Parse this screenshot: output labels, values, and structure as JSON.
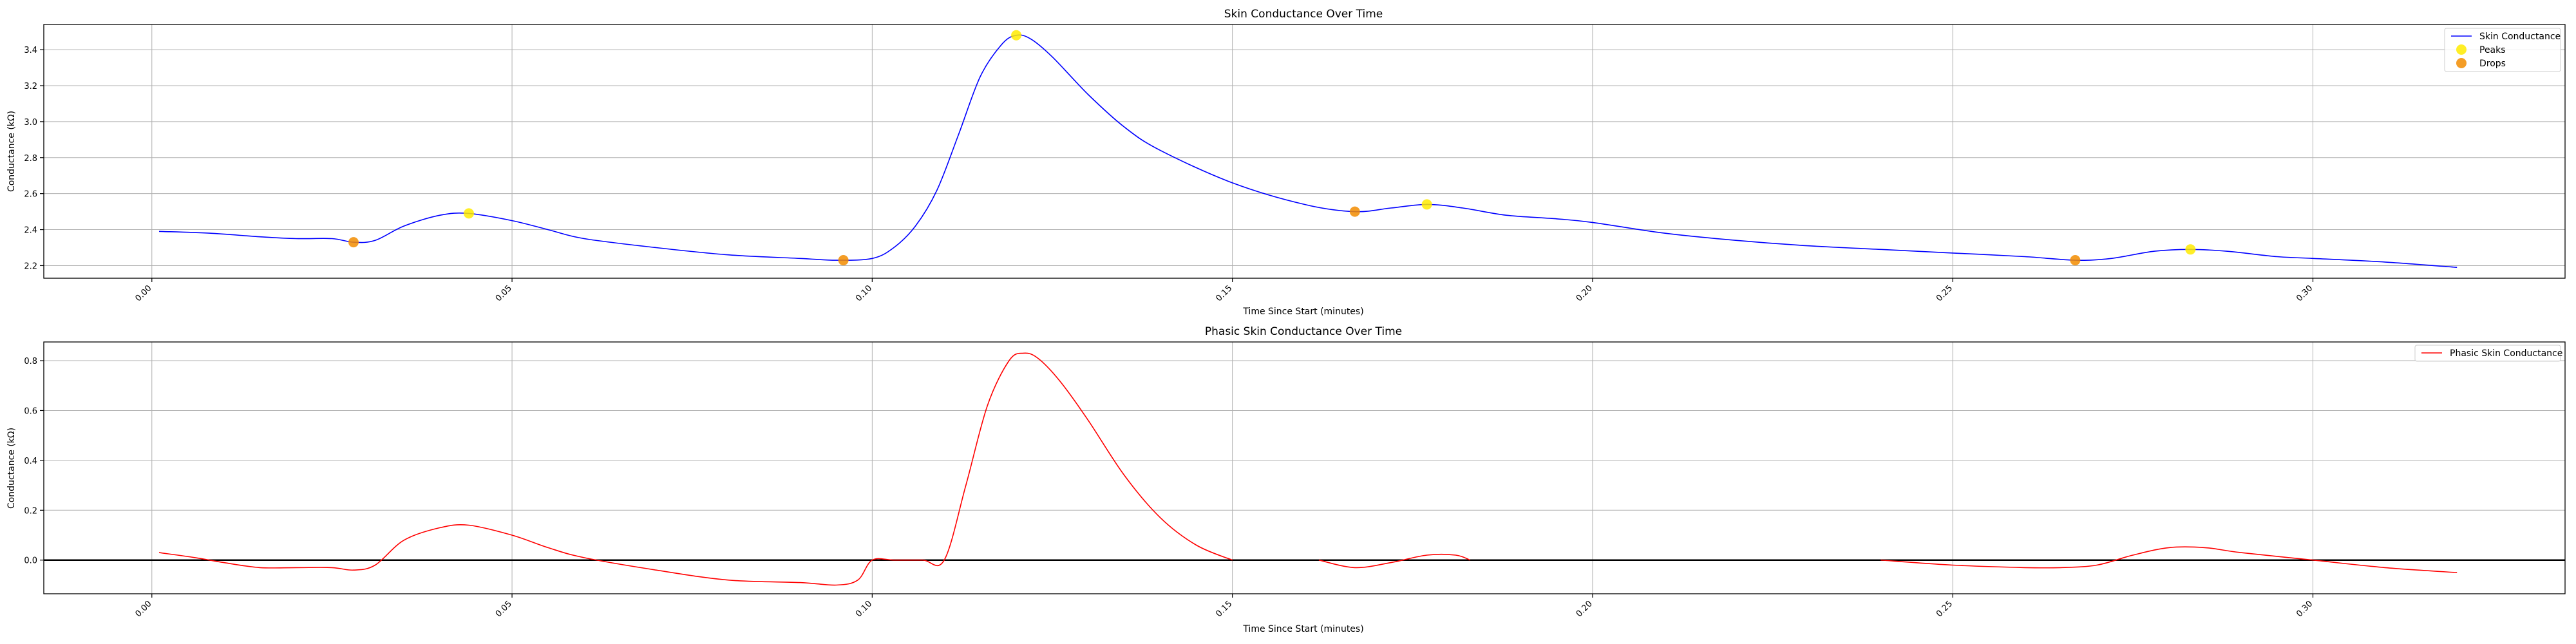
{
  "colors": {
    "sc_line": "#0000ff",
    "phasic_line": "#ff0000",
    "peaks": "#ffeb00",
    "drops": "#f28c00",
    "grid": "#b0b0b0",
    "zero_line": "#000000"
  },
  "chart_data": [
    {
      "type": "line",
      "title": "Skin Conductance Over Time",
      "xlabel": "Time Since Start (minutes)",
      "ylabel": "Conductance (kΩ)",
      "xlim": [
        -0.015,
        0.335
      ],
      "ylim": [
        2.13,
        3.54
      ],
      "xticks": [
        0.0,
        0.05,
        0.1,
        0.15,
        0.2,
        0.25,
        0.3
      ],
      "xtick_labels": [
        "0.00",
        "0.05",
        "0.10",
        "0.15",
        "0.20",
        "0.25",
        "0.30"
      ],
      "yticks": [
        2.2,
        2.4,
        2.6,
        2.8,
        3.0,
        3.2,
        3.4
      ],
      "ytick_labels": [
        "2.2",
        "2.4",
        "2.6",
        "2.8",
        "3.0",
        "3.2",
        "3.4"
      ],
      "grid": true,
      "legend_position": "top-right",
      "series": [
        {
          "name": "Skin Conductance",
          "kind": "line",
          "x": [
            0.001,
            0.008,
            0.015,
            0.02,
            0.025,
            0.028,
            0.031,
            0.035,
            0.04,
            0.044,
            0.05,
            0.055,
            0.06,
            0.07,
            0.08,
            0.09,
            0.095,
            0.1,
            0.103,
            0.106,
            0.109,
            0.112,
            0.115,
            0.118,
            0.12,
            0.122,
            0.125,
            0.13,
            0.135,
            0.14,
            0.15,
            0.16,
            0.167,
            0.172,
            0.177,
            0.182,
            0.188,
            0.195,
            0.2,
            0.21,
            0.22,
            0.23,
            0.24,
            0.25,
            0.26,
            0.267,
            0.272,
            0.278,
            0.283,
            0.288,
            0.295,
            0.3,
            0.31,
            0.32
          ],
          "y": [
            2.39,
            2.38,
            2.36,
            2.35,
            2.35,
            2.33,
            2.34,
            2.42,
            2.48,
            2.49,
            2.45,
            2.4,
            2.35,
            2.3,
            2.26,
            2.24,
            2.23,
            2.24,
            2.3,
            2.42,
            2.62,
            2.93,
            3.25,
            3.43,
            3.48,
            3.46,
            3.36,
            3.15,
            2.97,
            2.84,
            2.66,
            2.54,
            2.5,
            2.52,
            2.54,
            2.52,
            2.48,
            2.46,
            2.44,
            2.38,
            2.34,
            2.31,
            2.29,
            2.27,
            2.25,
            2.23,
            2.24,
            2.28,
            2.29,
            2.28,
            2.25,
            2.24,
            2.22,
            2.19
          ]
        },
        {
          "name": "Peaks",
          "kind": "scatter",
          "x": [
            0.044,
            0.12,
            0.177,
            0.283
          ],
          "y": [
            2.49,
            3.48,
            2.54,
            2.29
          ]
        },
        {
          "name": "Drops",
          "kind": "scatter",
          "x": [
            0.028,
            0.096,
            0.167,
            0.267
          ],
          "y": [
            2.33,
            2.23,
            2.5,
            2.23
          ]
        }
      ]
    },
    {
      "type": "line",
      "title": "Phasic Skin Conductance Over Time",
      "xlabel": "Time Since Start (minutes)",
      "ylabel": "Conductance (kΩ)",
      "xlim": [
        -0.015,
        0.335
      ],
      "ylim": [
        -0.135,
        0.875
      ],
      "xticks": [
        0.0,
        0.05,
        0.1,
        0.15,
        0.2,
        0.25,
        0.3
      ],
      "xtick_labels": [
        "0.00",
        "0.05",
        "0.10",
        "0.15",
        "0.20",
        "0.25",
        "0.30"
      ],
      "yticks": [
        0.0,
        0.2,
        0.4,
        0.6,
        0.8
      ],
      "ytick_labels": [
        "0.0",
        "0.2",
        "0.4",
        "0.6",
        "0.8"
      ],
      "grid": true,
      "zero_line": true,
      "legend_position": "top-right",
      "series": [
        {
          "name": "Phasic Skin Conductance",
          "kind": "line",
          "segments": [
            {
              "x": [
                0.001,
                0.006,
                0.01,
                0.015,
                0.02,
                0.025,
                0.028,
                0.031,
                0.035,
                0.04,
                0.044,
                0.05,
                0.055,
                0.06,
                0.07,
                0.08,
                0.09,
                0.095,
                0.098,
                0.1,
                0.103,
                0.107,
                0.11,
                0.113,
                0.116,
                0.119,
                0.121,
                0.123,
                0.126,
                0.13,
                0.135,
                0.14,
                0.145,
                0.15
              ],
              "y": [
                0.03,
                0.01,
                -0.01,
                -0.03,
                -0.03,
                -0.03,
                -0.04,
                -0.02,
                0.08,
                0.13,
                0.14,
                0.1,
                0.05,
                0.01,
                -0.04,
                -0.08,
                -0.09,
                -0.1,
                -0.08,
                0.0,
                0.0,
                0.0,
                0.0,
                0.3,
                0.62,
                0.8,
                0.83,
                0.81,
                0.72,
                0.56,
                0.34,
                0.17,
                0.06,
                0.0
              ]
            },
            {
              "x": [
                0.162,
                0.167,
                0.172,
                0.177,
                0.181,
                0.183
              ],
              "y": [
                0.0,
                -0.03,
                -0.01,
                0.02,
                0.02,
                0.0
              ]
            },
            {
              "x": [
                0.24,
                0.25,
                0.26,
                0.265,
                0.27,
                0.275,
                0.28,
                0.285,
                0.29,
                0.3,
                0.31,
                0.32
              ],
              "y": [
                0.0,
                -0.02,
                -0.03,
                -0.03,
                -0.02,
                0.02,
                0.05,
                0.05,
                0.03,
                0.0,
                -0.03,
                -0.05
              ]
            }
          ]
        }
      ]
    }
  ]
}
